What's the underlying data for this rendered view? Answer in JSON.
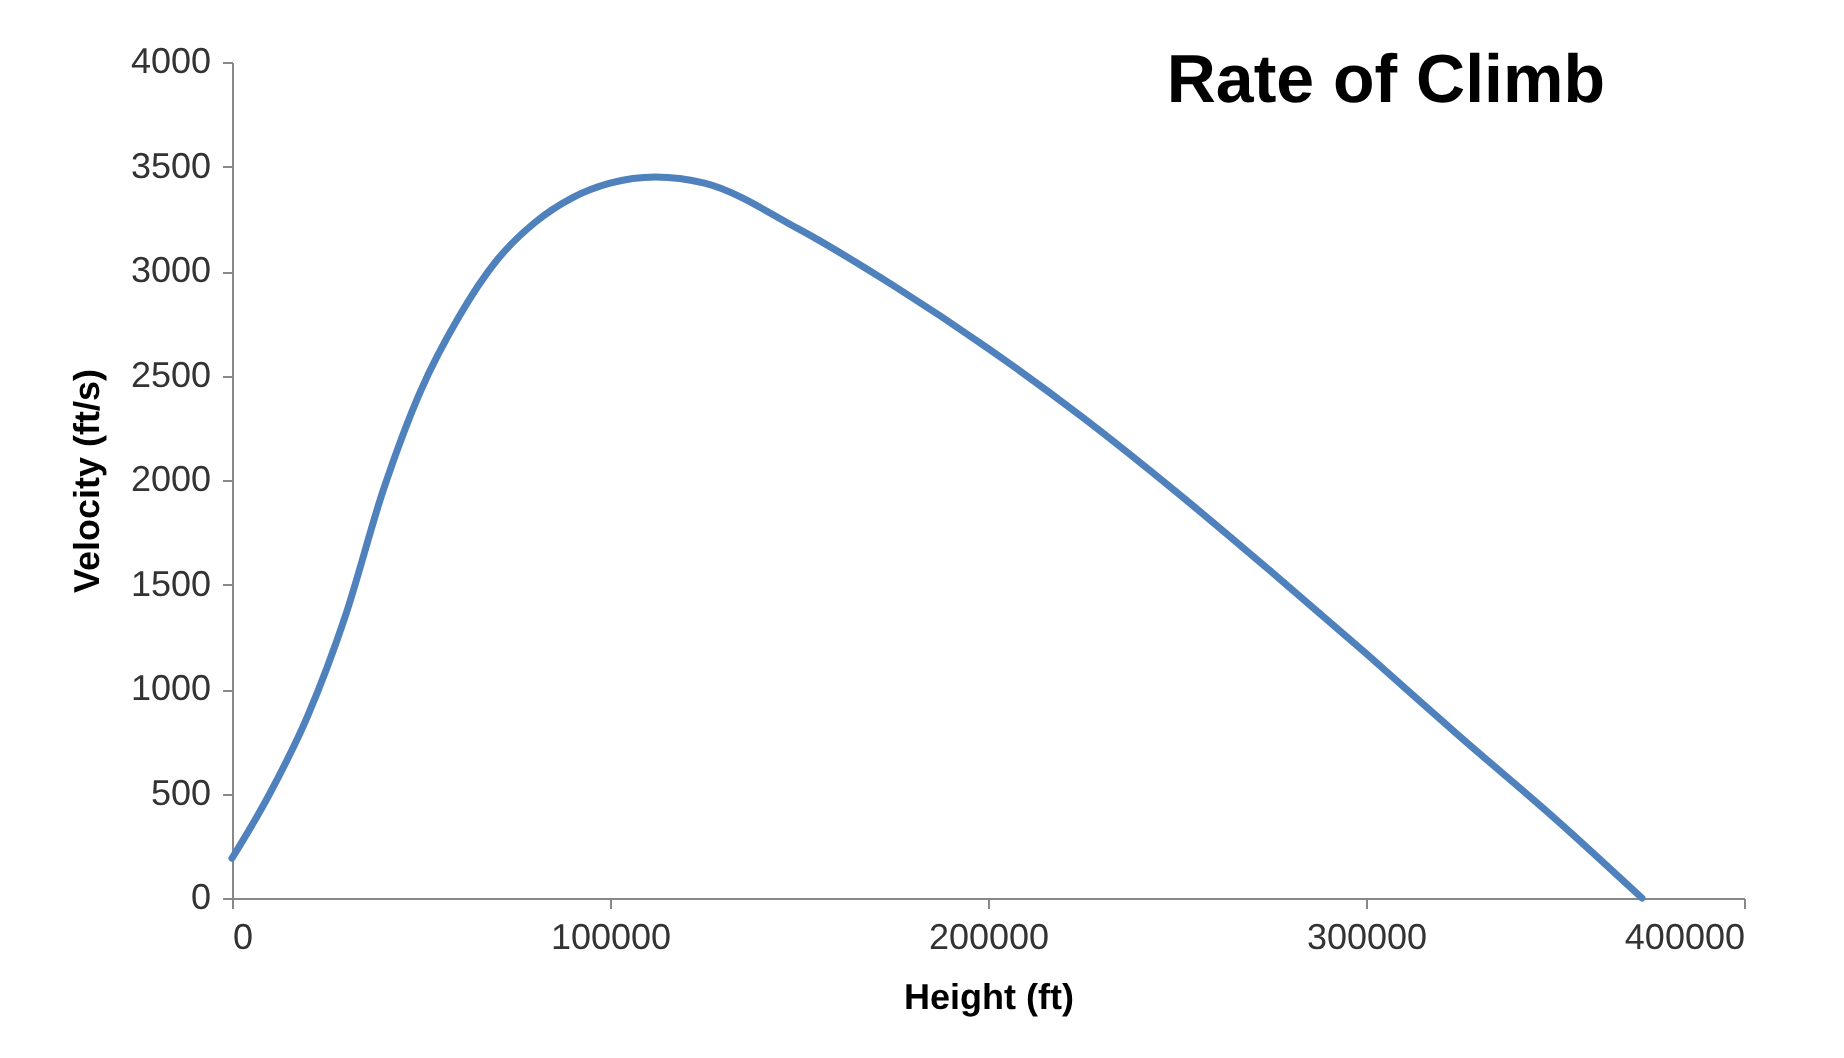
{
  "chart_data": {
    "type": "line",
    "title": "Rate of Climb",
    "xlabel": "Height (ft)",
    "ylabel": "Velocity (ft/s)",
    "x": [
      0,
      10000,
      20000,
      30000,
      40000,
      50000,
      60000,
      70000,
      80000,
      90000,
      100000,
      112000,
      125000,
      150000,
      175000,
      200000,
      225000,
      250000,
      275000,
      300000,
      325000,
      350000,
      373000
    ],
    "series": [
      {
        "color": "#4f81bd",
        "values": [
          190,
          500,
          870,
          1350,
          1950,
          2430,
          2780,
          3050,
          3230,
          3350,
          3420,
          3450,
          3420,
          3200,
          2930,
          2630,
          2300,
          1940,
          1560,
          1170,
          770,
          380,
          0
        ]
      }
    ],
    "xlim": [
      0,
      400000
    ],
    "xticks": [
      0,
      100000,
      200000,
      300000,
      400000
    ],
    "ylim": [
      0,
      4000
    ],
    "yticks": [
      0,
      500,
      1000,
      1500,
      2000,
      2500,
      3000,
      3500,
      4000
    ],
    "grid": false,
    "marker": "none",
    "line_style": "solid"
  }
}
